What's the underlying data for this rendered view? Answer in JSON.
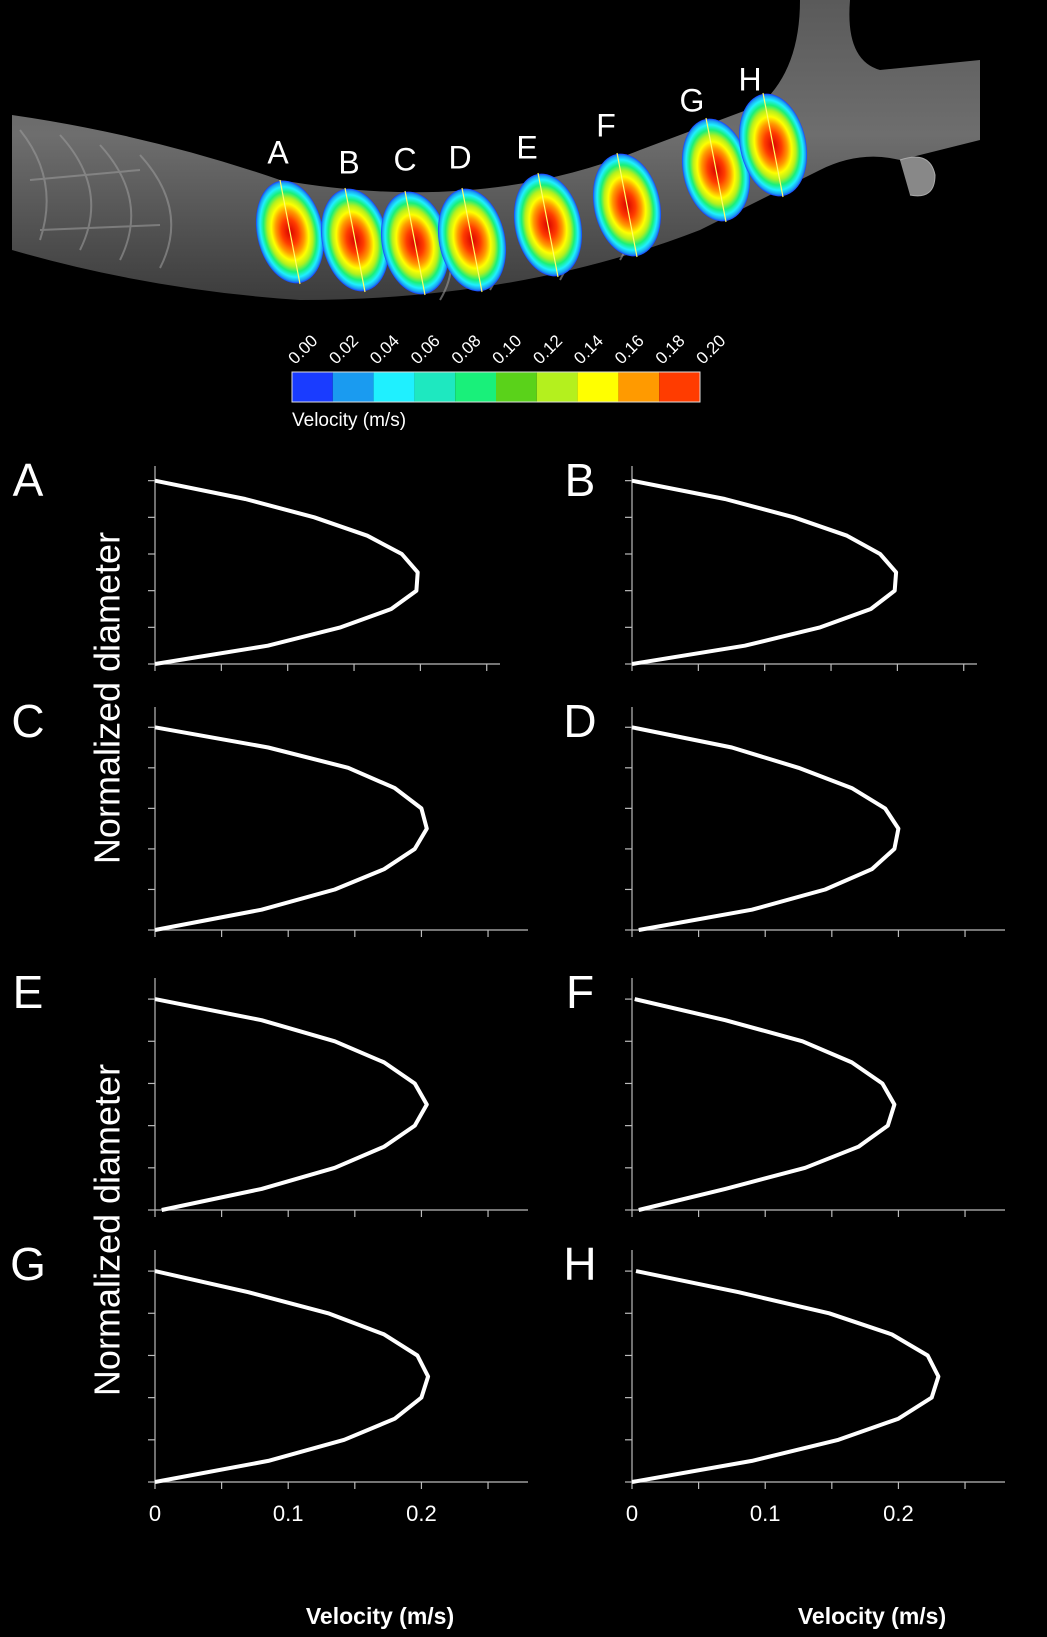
{
  "figure": {
    "illustration_labels": [
      "A",
      "B",
      "C",
      "D",
      "E",
      "F",
      "G",
      "H"
    ],
    "colorbar": {
      "ticks": [
        {
          "value": 0,
          "label": "0.00"
        },
        {
          "value": 0.02,
          "label": "0.02"
        },
        {
          "value": 0.04,
          "label": "0.04"
        },
        {
          "value": 0.06,
          "label": "0.06"
        },
        {
          "value": 0.08,
          "label": "0.08"
        },
        {
          "value": 0.1,
          "label": "0.10"
        },
        {
          "value": 0.12,
          "label": "0.12"
        },
        {
          "value": 0.14,
          "label": "0.14"
        },
        {
          "value": 0.16,
          "label": "0.16"
        },
        {
          "value": 0.18,
          "label": "0.18"
        },
        {
          "value": 0.2,
          "label": "0.20"
        }
      ],
      "colors": [
        "#1a3cff",
        "#1a9bf0",
        "#1ff0ff",
        "#1ee8c0",
        "#19f07a",
        "#5ad21a",
        "#b4f01e",
        "#ffff00",
        "#ff9a00",
        "#ff3c00"
      ],
      "label": "Velocity (m/s)"
    }
  },
  "chart_data": [
    {
      "type": "line",
      "panel_label": "A",
      "ylabel": "Normalized diameter",
      "color": "#ffffff",
      "x": [
        0,
        0.085,
        0.14,
        0.178,
        0.197,
        0.198,
        0.186,
        0.16,
        0.12,
        0.068,
        0
      ],
      "y": [
        0,
        0.1,
        0.2,
        0.3,
        0.4,
        0.5,
        0.6,
        0.7,
        0.8,
        0.9,
        1
      ],
      "xlim": [
        0,
        0.26
      ],
      "ylim": [
        0,
        1.08
      ],
      "xticks": [
        0,
        0.1,
        0.2
      ],
      "xminor_ticks": [
        0.05,
        0.15,
        0.25
      ],
      "yticks": [
        0,
        0.2,
        0.4,
        0.6,
        0.8,
        1
      ],
      "show_xtick_labels": false
    },
    {
      "type": "line",
      "panel_label": "B",
      "color": "#ffffff",
      "x": [
        0,
        0.085,
        0.142,
        0.18,
        0.198,
        0.199,
        0.187,
        0.162,
        0.122,
        0.07,
        0
      ],
      "y": [
        0,
        0.1,
        0.2,
        0.3,
        0.4,
        0.5,
        0.6,
        0.7,
        0.8,
        0.9,
        1
      ],
      "xlim": [
        0,
        0.26
      ],
      "ylim": [
        0,
        1.08
      ],
      "xticks": [
        0,
        0.1,
        0.2
      ],
      "xminor_ticks": [
        0.05,
        0.15,
        0.25
      ],
      "yticks": [
        0,
        0.2,
        0.4,
        0.6,
        0.8,
        1
      ],
      "show_xtick_labels": false
    },
    {
      "type": "line",
      "panel_label": "C",
      "color": "#ffffff",
      "x": [
        0,
        0.08,
        0.135,
        0.172,
        0.195,
        0.204,
        0.2,
        0.18,
        0.145,
        0.085,
        0
      ],
      "y": [
        0,
        0.1,
        0.2,
        0.3,
        0.4,
        0.5,
        0.6,
        0.7,
        0.8,
        0.9,
        1
      ],
      "xlim": [
        0,
        0.28
      ],
      "ylim": [
        0,
        1.1
      ],
      "xticks": [
        0,
        0.1,
        0.2
      ],
      "xminor_ticks": [
        0.05,
        0.15,
        0.25
      ],
      "yticks": [
        0,
        0.2,
        0.4,
        0.6,
        0.8,
        1
      ],
      "show_xtick_labels": false
    },
    {
      "type": "line",
      "panel_label": "D",
      "color": "#ffffff",
      "x": [
        0.005,
        0.09,
        0.145,
        0.18,
        0.197,
        0.2,
        0.19,
        0.165,
        0.125,
        0.075,
        0
      ],
      "y": [
        0,
        0.1,
        0.2,
        0.3,
        0.4,
        0.5,
        0.6,
        0.7,
        0.8,
        0.9,
        1
      ],
      "xlim": [
        0,
        0.28
      ],
      "ylim": [
        0,
        1.1
      ],
      "xticks": [
        0,
        0.1,
        0.2
      ],
      "xminor_ticks": [
        0.05,
        0.15,
        0.25
      ],
      "yticks": [
        0,
        0.2,
        0.4,
        0.6,
        0.8,
        1
      ],
      "show_xtick_labels": false
    },
    {
      "type": "line",
      "panel_label": "E",
      "ylabel": "Normalized diameter",
      "color": "#ffffff",
      "x": [
        0.005,
        0.08,
        0.135,
        0.172,
        0.195,
        0.204,
        0.195,
        0.172,
        0.135,
        0.08,
        0
      ],
      "y": [
        0,
        0.1,
        0.2,
        0.3,
        0.4,
        0.5,
        0.6,
        0.7,
        0.8,
        0.9,
        1
      ],
      "xlim": [
        0,
        0.28
      ],
      "ylim": [
        0,
        1.1
      ],
      "xticks": [
        0,
        0.1,
        0.2
      ],
      "xminor_ticks": [
        0.05,
        0.15,
        0.25
      ],
      "yticks": [
        0,
        0.2,
        0.4,
        0.6,
        0.8,
        1
      ],
      "show_xtick_labels": false
    },
    {
      "type": "line",
      "panel_label": "F",
      "color": "#ffffff",
      "x": [
        0.005,
        0.07,
        0.13,
        0.17,
        0.192,
        0.197,
        0.188,
        0.165,
        0.128,
        0.07,
        0.002
      ],
      "y": [
        0,
        0.1,
        0.2,
        0.3,
        0.4,
        0.5,
        0.6,
        0.7,
        0.8,
        0.9,
        1
      ],
      "xlim": [
        0,
        0.28
      ],
      "ylim": [
        0,
        1.1
      ],
      "xticks": [
        0,
        0.1,
        0.2
      ],
      "xminor_ticks": [
        0.05,
        0.15,
        0.25
      ],
      "yticks": [
        0,
        0.2,
        0.4,
        0.6,
        0.8,
        1
      ],
      "show_xtick_labels": false
    },
    {
      "type": "line",
      "panel_label": "G",
      "xlabel": "Velocity (m/s)",
      "color": "#ffffff",
      "x": [
        0,
        0.085,
        0.142,
        0.18,
        0.2,
        0.205,
        0.197,
        0.172,
        0.13,
        0.07,
        0
      ],
      "y": [
        0,
        0.1,
        0.2,
        0.3,
        0.4,
        0.5,
        0.6,
        0.7,
        0.8,
        0.9,
        1
      ],
      "xlim": [
        0,
        0.28
      ],
      "ylim": [
        0,
        1.1
      ],
      "xticks": [
        0,
        0.1,
        0.2
      ],
      "xminor_ticks": [
        0.05,
        0.15,
        0.25
      ],
      "yticks": [
        0,
        0.2,
        0.4,
        0.6,
        0.8,
        1
      ],
      "show_xtick_labels": true
    },
    {
      "type": "line",
      "panel_label": "H",
      "xlabel": "Velocity (m/s)",
      "color": "#ffffff",
      "x": [
        0,
        0.09,
        0.155,
        0.2,
        0.225,
        0.23,
        0.222,
        0.195,
        0.148,
        0.08,
        0.003
      ],
      "y": [
        0,
        0.1,
        0.2,
        0.3,
        0.4,
        0.5,
        0.6,
        0.7,
        0.8,
        0.9,
        1
      ],
      "xlim": [
        0,
        0.28
      ],
      "ylim": [
        0,
        1.1
      ],
      "xticks": [
        0,
        0.1,
        0.2
      ],
      "xminor_ticks": [
        0.05,
        0.15,
        0.25
      ],
      "yticks": [
        0,
        0.2,
        0.4,
        0.6,
        0.8,
        1
      ],
      "show_xtick_labels": true
    }
  ]
}
